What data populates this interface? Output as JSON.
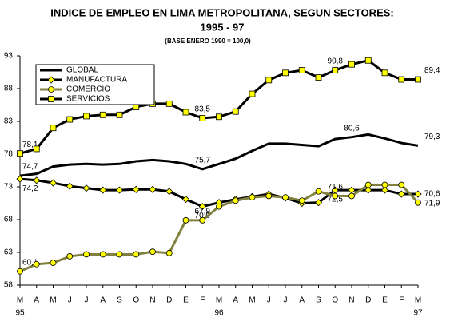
{
  "chart_data": {
    "type": "line",
    "title": "INDICE DE EMPLEO EN LIMA METROPOLITANA, SEGUN SECTORES:",
    "subtitle": "1995 - 97",
    "note": "(BASE ENERO 1990 = 100,0)",
    "categories": [
      "M",
      "A",
      "M",
      "J",
      "J",
      "A",
      "S",
      "O",
      "N",
      "D",
      "E",
      "F",
      "M",
      "A",
      "M",
      "J",
      "J",
      "A",
      "S",
      "O",
      "N",
      "D",
      "E",
      "F",
      "M"
    ],
    "category_years": [
      "95",
      null,
      null,
      null,
      null,
      null,
      null,
      null,
      null,
      null,
      null,
      null,
      "96",
      null,
      null,
      null,
      null,
      null,
      null,
      null,
      null,
      null,
      null,
      null,
      "97"
    ],
    "ylim": [
      58,
      93
    ],
    "yticks": [
      58,
      63,
      68,
      73,
      78,
      83,
      88,
      93
    ],
    "grid": false,
    "legend": "top-left",
    "series": [
      {
        "name": "GLOBAL",
        "color": "#000000",
        "marker": "none",
        "marker_color": "#ffff00",
        "values": [
          74.7,
          75.0,
          76.1,
          76.4,
          76.5,
          76.4,
          76.5,
          76.9,
          77.1,
          76.9,
          76.5,
          75.7,
          76.5,
          77.3,
          78.5,
          79.6,
          79.6,
          79.4,
          79.2,
          80.3,
          80.6,
          81.0,
          80.4,
          79.7,
          79.3
        ],
        "value_labels": [
          "74,7",
          null,
          null,
          null,
          null,
          null,
          null,
          null,
          null,
          null,
          null,
          "75,7",
          null,
          null,
          null,
          null,
          null,
          null,
          null,
          null,
          "80,6",
          null,
          null,
          null,
          "79,3"
        ]
      },
      {
        "name": "MANUFACTURA",
        "color": "#000000",
        "marker": "diamond",
        "marker_color": "#ffff00",
        "values": [
          74.2,
          74.0,
          73.6,
          73.1,
          72.8,
          72.5,
          72.5,
          72.6,
          72.6,
          72.3,
          71.1,
          70.0,
          70.6,
          71.1,
          71.5,
          71.9,
          71.3,
          70.5,
          70.6,
          72.5,
          72.5,
          72.5,
          72.5,
          71.9,
          71.9
        ],
        "value_labels": [
          "74,2",
          null,
          null,
          null,
          null,
          null,
          null,
          null,
          null,
          null,
          null,
          "70,0",
          null,
          null,
          null,
          null,
          null,
          null,
          null,
          "72,5",
          null,
          null,
          null,
          null,
          "71,9"
        ]
      },
      {
        "name": "COMERCIO",
        "color": "#808040",
        "marker": "circle",
        "marker_color": "#ffff00",
        "values": [
          60.1,
          61.2,
          61.4,
          62.4,
          62.7,
          62.7,
          62.7,
          62.7,
          63.1,
          62.9,
          67.9,
          67.9,
          70.0,
          70.9,
          71.4,
          71.6,
          71.4,
          70.9,
          72.3,
          71.6,
          71.6,
          73.3,
          73.3,
          73.3,
          70.6
        ],
        "value_labels": [
          "60,1",
          null,
          null,
          null,
          null,
          null,
          null,
          null,
          null,
          null,
          null,
          "67,9",
          null,
          null,
          null,
          null,
          null,
          null,
          null,
          "71,6",
          null,
          null,
          null,
          null,
          "70,6"
        ]
      },
      {
        "name": "SERVICIOS",
        "color": "#000000",
        "marker": "square",
        "marker_color": "#ffff00",
        "values": [
          78.1,
          78.8,
          82.0,
          83.3,
          83.8,
          84.0,
          84.0,
          85.2,
          85.7,
          85.7,
          84.4,
          83.5,
          83.7,
          84.5,
          87.2,
          89.3,
          90.4,
          90.8,
          89.7,
          90.8,
          91.7,
          92.3,
          90.4,
          89.4,
          89.4
        ],
        "value_labels": [
          "78,1",
          null,
          null,
          null,
          null,
          null,
          null,
          null,
          null,
          null,
          null,
          "83,5",
          null,
          null,
          null,
          null,
          null,
          null,
          null,
          "90,8",
          null,
          null,
          null,
          null,
          "89,4"
        ]
      }
    ]
  }
}
